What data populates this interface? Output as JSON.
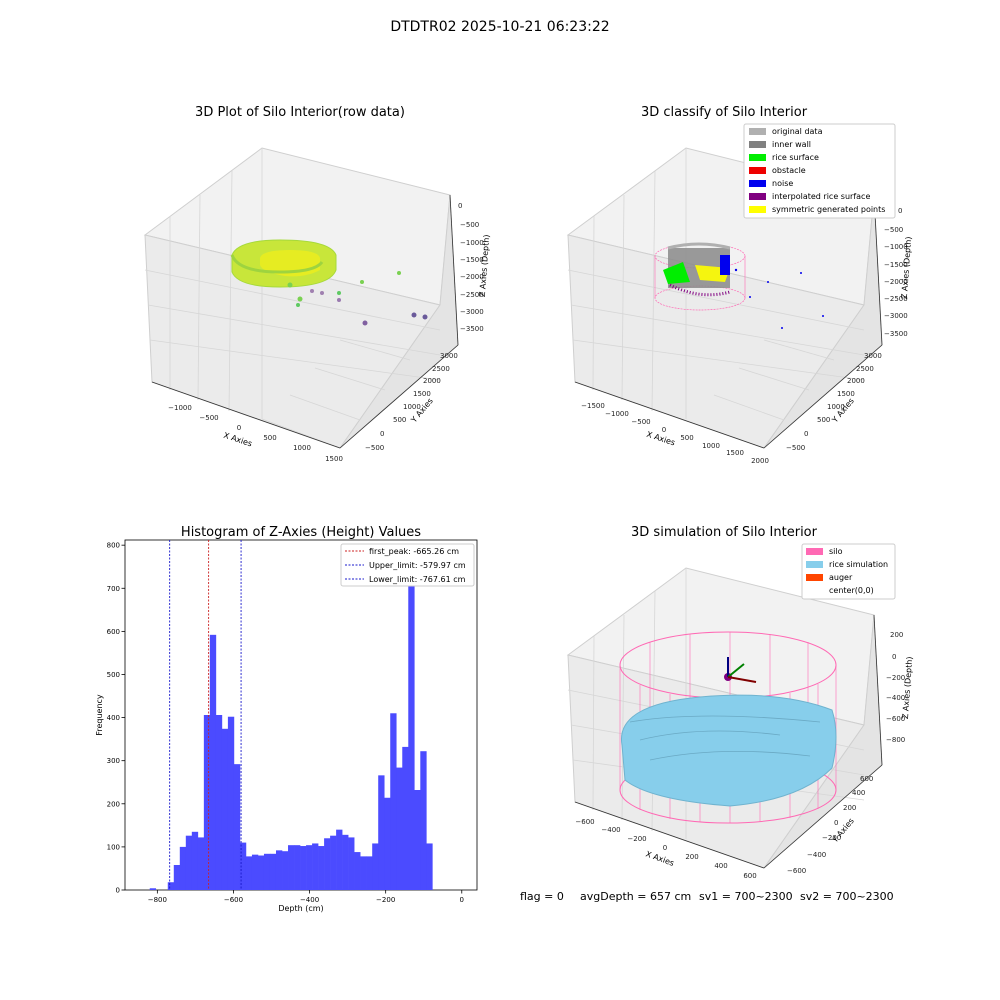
{
  "suptitle": "DTDTR02 2025-10-21 06:23:22",
  "footer": {
    "flag": "flag = 0",
    "avg": "avgDepth = 657 cm",
    "sv1": "sv1 = 700~2300",
    "sv2": "sv2 = 700~2300"
  },
  "colors": {
    "hist": "#4b4bff",
    "peak": "#cc2222",
    "limit": "#1a1acc",
    "pane": "#f2f2f2",
    "grid": "#d9d9d9",
    "rice_surface": "#00ee00",
    "inner_wall": "#808080",
    "noise": "#0000ee",
    "interp": "#800080",
    "symmetric": "#ffff00",
    "original": "#b0b0b0",
    "obstacle": "#ee0000",
    "silo": "#ff69b4",
    "rice_sim": "#87ceeb",
    "auger": "#ff4500"
  },
  "chart_data": [
    {
      "type": "scatter",
      "projection": "3d",
      "title": "3D Plot of Silo Interior(row data)",
      "xlabel": "X Axies",
      "ylabel": "Y Axies",
      "zlabel": "Z Axies (Depth)",
      "x_ticks": [
        "−1000",
        "−500",
        "0",
        "500",
        "1000",
        "1500"
      ],
      "y_ticks": [
        "−500",
        "0",
        "500",
        "1000",
        "1500",
        "2000",
        "2500",
        "3000"
      ],
      "z_ticks": [
        "0",
        "−500",
        "−1000",
        "−1500",
        "−2000",
        "−2500",
        "−3000",
        "−3500"
      ],
      "colormap": "viridis by depth (yellow-green band dominant)"
    },
    {
      "type": "scatter",
      "projection": "3d",
      "title": "3D classify of Silo Interior",
      "xlabel": "X Axies",
      "ylabel": "Y Axies",
      "zlabel": "Z Axies (Depth)",
      "x_ticks": [
        "−1500",
        "−1000",
        "−500",
        "0",
        "500",
        "1000",
        "1500",
        "2000"
      ],
      "y_ticks": [
        "−500",
        "0",
        "500",
        "1000",
        "1500",
        "2000",
        "2500",
        "3000"
      ],
      "z_ticks": [
        "0",
        "−500",
        "−1000",
        "−1500",
        "−2000",
        "−2500",
        "−3000",
        "−3500"
      ],
      "legend_position": "top-right",
      "legend": [
        {
          "label": "original data",
          "color": "#b0b0b0"
        },
        {
          "label": "inner wall",
          "color": "#808080"
        },
        {
          "label": "rice surface",
          "color": "#00ee00"
        },
        {
          "label": "obstacle",
          "color": "#ee0000"
        },
        {
          "label": "noise",
          "color": "#0000ee"
        },
        {
          "label": "interpolated rice surface",
          "color": "#800080"
        },
        {
          "label": "symmetric generated points",
          "color": "#ffff00"
        }
      ]
    },
    {
      "type": "bar",
      "subtype": "histogram",
      "title": "Histogram of Z-Axies (Height) Values",
      "xlabel": "Depth (cm)",
      "ylabel": "Frequency",
      "xlim": [
        -885,
        40
      ],
      "ylim": [
        0,
        812
      ],
      "x_ticks": [
        -800,
        -600,
        -400,
        -200,
        0
      ],
      "x_tick_labels": [
        "−800",
        "−600",
        "−400",
        "−200",
        "0"
      ],
      "y_ticks": [
        0,
        100,
        200,
        300,
        400,
        500,
        600,
        700,
        800
      ],
      "bin_width": 15.8,
      "bin_start": -820,
      "counts": [
        4,
        0,
        0,
        18,
        58,
        100,
        126,
        135,
        122,
        406,
        592,
        406,
        374,
        402,
        292,
        110,
        78,
        82,
        80,
        84,
        84,
        92,
        90,
        104,
        104,
        102,
        104,
        108,
        102,
        120,
        126,
        140,
        128,
        122,
        88,
        78,
        78,
        108,
        266,
        214,
        410,
        284,
        332,
        764,
        232,
        322,
        108
      ],
      "reference_lines": [
        {
          "x": -665.26,
          "label": "first_peak: -665.26 cm",
          "color": "#cc2222"
        },
        {
          "x": -579.97,
          "label": "Upper_limit: -579.97 cm",
          "color": "#1a1acc"
        },
        {
          "x": -767.61,
          "label": "Lower_limit: -767.61 cm",
          "color": "#1a1acc"
        }
      ],
      "legend_position": "top-right"
    },
    {
      "type": "scatter",
      "projection": "3d",
      "title": "3D simulation of Silo Interior",
      "xlabel": "X Axies",
      "ylabel": "Y Axies",
      "zlabel": "Z Axies (Depth)",
      "x_ticks": [
        "−600",
        "−400",
        "−200",
        "0",
        "200",
        "400",
        "600"
      ],
      "y_ticks": [
        "−600",
        "−400",
        "−200",
        "0",
        "200",
        "400",
        "600"
      ],
      "z_ticks": [
        "200",
        "0",
        "−200",
        "−400",
        "−600",
        "−800"
      ],
      "legend_position": "top-right",
      "legend": [
        {
          "label": "silo",
          "color": "#ff69b4"
        },
        {
          "label": "rice simulation",
          "color": "#87ceeb"
        },
        {
          "label": "auger",
          "color": "#ff4500"
        },
        {
          "label": "center(0,0)",
          "color": "#ffffff"
        }
      ]
    }
  ]
}
